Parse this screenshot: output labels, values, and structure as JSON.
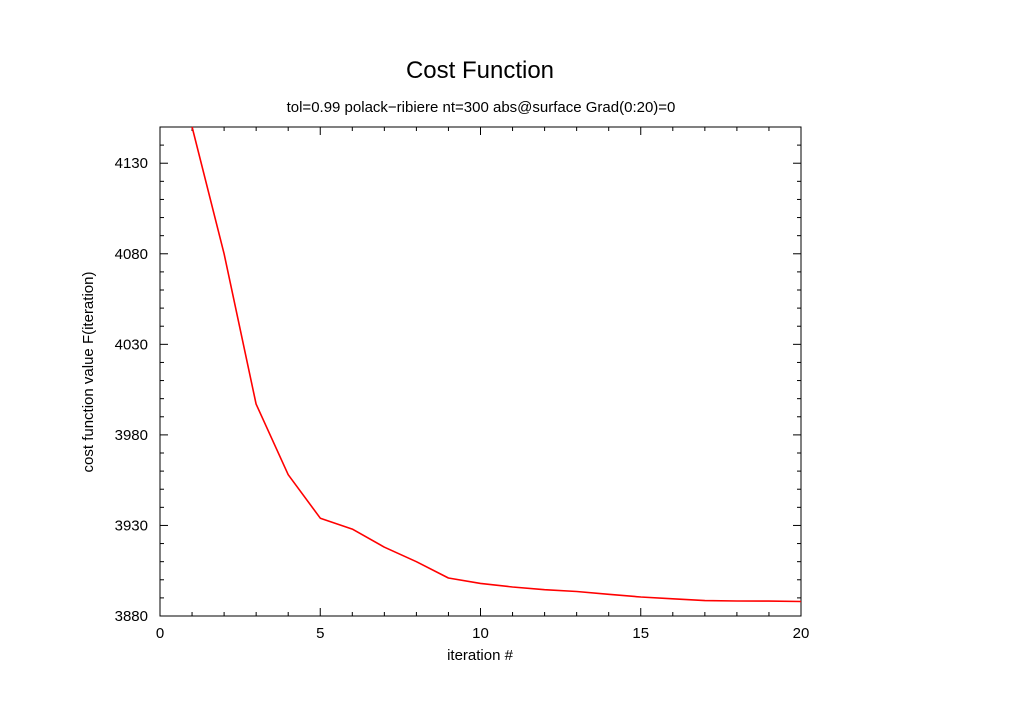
{
  "chart_data": {
    "type": "line",
    "title": "Cost Function",
    "subtitle": "tol=0.99 polack−ribiere nt=300 abs@surface Grad(0:20)=0",
    "xlabel": "iteration #",
    "ylabel": "cost function value F(iteration)",
    "xlim": [
      0,
      20
    ],
    "ylim": [
      3880,
      4150
    ],
    "xticks": [
      0,
      5,
      10,
      15,
      20
    ],
    "yticks": [
      3880,
      3930,
      3980,
      4030,
      4080,
      4130
    ],
    "grid": false,
    "series": [
      {
        "color": "#ff0000",
        "x": [
          1,
          2,
          3,
          4,
          5,
          6,
          7,
          8,
          9,
          10,
          11,
          12,
          13,
          14,
          15,
          16,
          17,
          18,
          19,
          20
        ],
        "y": [
          4150,
          4080,
          3997,
          3958,
          3934,
          3928,
          3918,
          3910,
          3901,
          3898,
          3896,
          3894.5,
          3893.5,
          3892,
          3890.5,
          3889.5,
          3888.5,
          3888.3,
          3888.2,
          3888
        ]
      }
    ]
  }
}
